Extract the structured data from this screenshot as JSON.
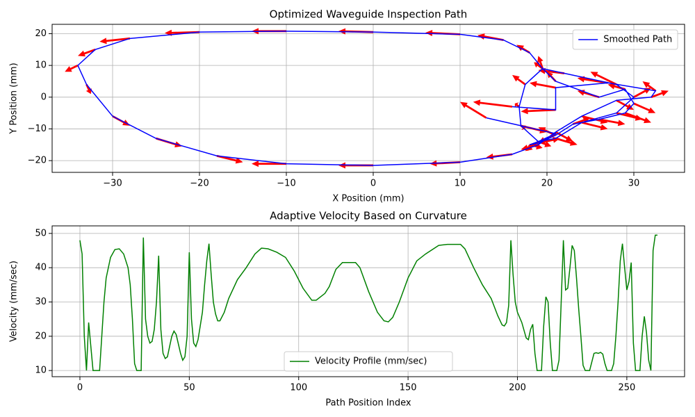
{
  "chart_data": [
    {
      "type": "line",
      "title": "Optimized Waveguide Inspection Path",
      "xlabel": "X Position (mm)",
      "ylabel": "Y Position (mm)",
      "series": [
        {
          "name": "Smoothed Path",
          "color": "#0000ff",
          "x": [
            13,
            17,
            21,
            19,
            18,
            19,
            21,
            23,
            26,
            29,
            30,
            29,
            26,
            21,
            19.5,
            17.5,
            16.8,
            17,
            19,
            21,
            24,
            28,
            30,
            28,
            22,
            19.5,
            18,
            15,
            10,
            0,
            -10,
            -20,
            -28,
            -32,
            -34,
            -33,
            -30,
            -25,
            -18,
            -10,
            0,
            10,
            16,
            19,
            21,
            24,
            28,
            32,
            32.5,
            27,
            21,
            21,
            16
          ],
          "values": [
            -6.5,
            -9,
            -11.5,
            -14,
            -15,
            -14.5,
            -12,
            -8.5,
            -7,
            -5,
            -2,
            2.5,
            0,
            5,
            9,
            4,
            -3,
            -9,
            -14,
            -13,
            -8,
            -5,
            0,
            4,
            7.5,
            9,
            14,
            18,
            19.8,
            20.5,
            20.8,
            20.5,
            18.5,
            15,
            10,
            4,
            -6,
            -13,
            -18.5,
            -21,
            -21.5,
            -20.5,
            -18,
            -15,
            -11,
            -6,
            -1,
            0,
            2,
            4.5,
            3,
            -4,
            -3
          ]
        }
      ],
      "arrows": {
        "color": "#ff0000",
        "x": [
          13,
          17,
          21,
          19,
          18,
          19,
          21,
          23,
          26,
          29,
          30,
          29,
          26,
          21,
          19.5,
          17.5,
          16.8,
          17,
          19,
          21,
          24,
          28,
          30,
          28,
          22,
          19.5,
          18,
          15,
          10,
          0,
          -10,
          -20,
          -28,
          -32,
          -34,
          -33,
          -30,
          -25,
          -18,
          -10,
          0,
          10,
          16,
          19,
          21,
          24,
          28,
          32,
          32.5,
          27,
          21,
          21,
          16
        ],
        "y": [
          -6.5,
          -9,
          -11.5,
          -14,
          -15,
          -14.5,
          -12,
          -8.5,
          -7,
          -5,
          -2,
          2.5,
          0,
          5,
          9,
          4,
          -3,
          -9,
          -14,
          -13,
          -8,
          -5,
          0,
          4,
          7.5,
          9,
          14,
          18,
          19.8,
          20.5,
          20.8,
          20.5,
          18.5,
          15,
          10,
          4,
          -6,
          -13,
          -18.5,
          -21,
          -21.5,
          -20.5,
          -18,
          -15,
          -11,
          -6,
          -1,
          0,
          2,
          4.5,
          3,
          -4,
          -3
        ],
        "u": [
          -3,
          3,
          -2,
          -1.5,
          1.5,
          2.5,
          -2,
          2,
          3,
          3,
          2.5,
          -2,
          -2.5,
          -1,
          -0.5,
          -1.5,
          -0.5,
          0.5,
          1.5,
          2.5,
          3,
          3,
          2,
          -3,
          -3,
          -1,
          -1.5,
          -3,
          -4,
          -4,
          -4,
          -4,
          -3.5,
          -2,
          -1.5,
          0.5,
          2,
          3,
          3,
          -4,
          -4,
          -3.5,
          -3,
          -2,
          2,
          3,
          2,
          2,
          -1.5,
          -3.5,
          -3,
          -4,
          -4.5
        ],
        "v": [
          5,
          -2,
          -3,
          -3,
          -1,
          1.5,
          2.5,
          2,
          -1.5,
          -3,
          -3,
          1.5,
          2,
          3,
          4,
          3,
          1,
          -1,
          -1.5,
          -2,
          -2,
          -2,
          3,
          4,
          1,
          2,
          2.5,
          1.5,
          0.5,
          0.3,
          0,
          -0.3,
          -1,
          -2,
          -2,
          -3,
          -3,
          -2.5,
          -2,
          0,
          0,
          -0.5,
          -1,
          -1.5,
          -3,
          -2,
          -3,
          2,
          3,
          1.5,
          1.5,
          -0.5,
          1.5
        ]
      },
      "xlim": [
        -36.96,
        35.84
      ],
      "ylim": [
        -23.7,
        22.95
      ],
      "xticks": [
        {
          "value": -30,
          "label": "−30"
        },
        {
          "value": -20,
          "label": "−20"
        },
        {
          "value": -10,
          "label": "−10"
        },
        0,
        10,
        20,
        30
      ],
      "yticks": [
        {
          "value": -20,
          "label": "−20"
        },
        {
          "value": -10,
          "label": "−10"
        },
        0,
        10,
        20
      ],
      "grid": true,
      "legend": "upper right"
    },
    {
      "type": "line",
      "title": "Adaptive Velocity Based on Curvature",
      "xlabel": "Path Position Index",
      "ylabel": "Velocity (mm/sec)",
      "series": [
        {
          "name": "Velocity Profile (mm/sec)",
          "color": "#008000",
          "x": [
            0,
            1,
            2,
            3,
            4,
            5,
            6,
            9,
            10,
            11,
            12,
            14,
            16,
            18,
            20,
            22,
            23,
            24,
            25,
            26,
            28,
            29,
            30,
            31,
            32,
            33,
            34,
            35,
            36,
            37,
            38,
            39,
            40,
            42,
            43,
            44,
            46,
            47,
            48,
            49,
            50,
            51,
            52,
            53,
            54,
            56,
            57,
            58,
            59,
            60,
            61,
            62,
            63,
            64,
            66,
            68,
            72,
            76,
            80,
            83,
            86,
            90,
            94,
            98,
            102,
            106,
            108,
            112,
            114,
            117,
            120,
            126,
            128,
            132,
            136,
            139,
            141,
            143,
            146,
            150,
            154,
            158,
            164,
            168,
            174,
            176,
            180,
            184,
            188,
            191,
            193,
            194,
            195,
            196,
            197,
            198,
            199,
            200,
            202,
            204,
            205,
            206,
            207,
            208,
            209,
            211,
            212,
            213,
            214,
            215,
            216,
            218,
            219,
            220,
            221,
            222,
            223,
            224,
            225,
            226,
            227,
            228,
            229,
            230,
            231,
            233,
            234,
            235,
            236,
            237,
            238,
            239,
            240,
            241,
            243,
            244,
            245,
            246,
            247,
            248,
            249,
            250,
            251,
            252,
            253,
            254,
            256,
            257,
            258,
            259,
            260,
            261,
            262,
            263,
            264
          ],
          "values": [
            48,
            44,
            20,
            10,
            24,
            17,
            10,
            10,
            20,
            30,
            37,
            43,
            45.3,
            45.5,
            44,
            40,
            35,
            25,
            12,
            10,
            10,
            48.8,
            25,
            20,
            18,
            18.5,
            22,
            30,
            43.5,
            22,
            15,
            13.5,
            14,
            20,
            21.5,
            20.5,
            15,
            13,
            14,
            20,
            44.5,
            25,
            18,
            17,
            19,
            27,
            35,
            42,
            47,
            38,
            30,
            26.5,
            24.5,
            24.5,
            27,
            31,
            36.5,
            40,
            44,
            45.7,
            45.5,
            44.5,
            43,
            39,
            34,
            30.5,
            30.5,
            32.5,
            34.5,
            39.5,
            41.5,
            41.5,
            40,
            33,
            27,
            24.5,
            24.2,
            25.5,
            30,
            37,
            42,
            44,
            46.5,
            46.8,
            46.8,
            45.5,
            40,
            35,
            31,
            26,
            23.3,
            23,
            24,
            29,
            48,
            38,
            30,
            27,
            24,
            19.5,
            19,
            22,
            23.5,
            15,
            10,
            10,
            23,
            31.5,
            30,
            18,
            10,
            10,
            13,
            30,
            48,
            33.5,
            34,
            40,
            46.5,
            45,
            37,
            28,
            20,
            11.5,
            10,
            10,
            12.5,
            15,
            15.2,
            15,
            15.3,
            14.8,
            12,
            10,
            10,
            12,
            20,
            30,
            42,
            47,
            40,
            33.5,
            36,
            41.5,
            18,
            10,
            10,
            20,
            25.8,
            21,
            13,
            10,
            45,
            49.5,
            49.5
          ]
        }
      ],
      "xlim": [
        -12.7,
        276.4
      ],
      "ylim": [
        8.2,
        52.2
      ],
      "xticks": [
        0,
        50,
        100,
        150,
        200,
        250
      ],
      "yticks": [
        10,
        20,
        30,
        40,
        50
      ],
      "grid": true,
      "legend": "lower center"
    }
  ]
}
